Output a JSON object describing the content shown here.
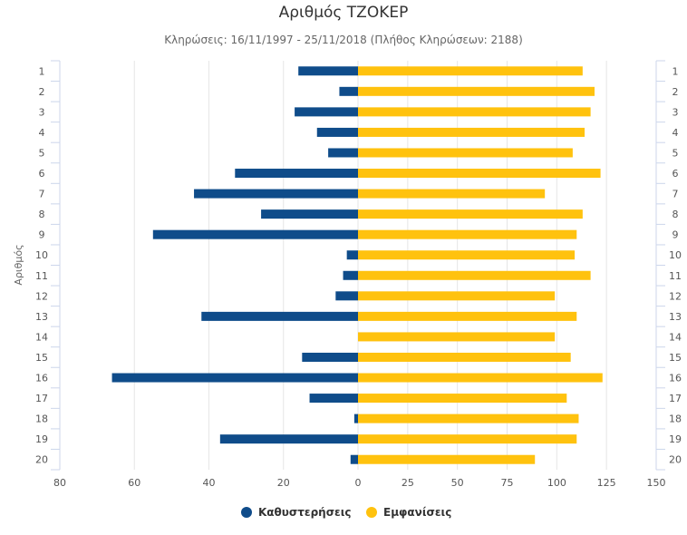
{
  "chart_data": {
    "type": "bar",
    "title": "Αριθμός ΤΖΟΚΕΡ",
    "subtitle": "Κληρώσεις: 16/11/1997 - 25/11/2018 (Πλήθος Κληρώσεων: 2188)",
    "ylabel": "Αριθμός",
    "categories": [
      "1",
      "2",
      "3",
      "4",
      "5",
      "6",
      "7",
      "8",
      "9",
      "10",
      "11",
      "12",
      "13",
      "14",
      "15",
      "16",
      "17",
      "18",
      "19",
      "20"
    ],
    "series": [
      {
        "name": "Καθυστερήσεις",
        "color": "#0f4c8a",
        "axis": "left",
        "values": [
          16,
          5,
          17,
          11,
          8,
          33,
          44,
          26,
          55,
          3,
          4,
          6,
          42,
          0,
          15,
          66,
          13,
          1,
          37,
          2
        ]
      },
      {
        "name": "Εμφανίσεις",
        "color": "#ffc20e",
        "axis": "right",
        "values": [
          113,
          119,
          117,
          114,
          108,
          122,
          94,
          113,
          110,
          109,
          117,
          99,
          110,
          99,
          107,
          123,
          105,
          111,
          110,
          89
        ]
      }
    ],
    "left_axis": {
      "min": 0,
      "max": 80,
      "ticks": [
        "80",
        "60",
        "40",
        "20",
        "0"
      ]
    },
    "right_axis": {
      "min": 0,
      "max": 150,
      "ticks": [
        "25",
        "50",
        "75",
        "100",
        "125",
        "150"
      ]
    },
    "legend_position": "bottom"
  }
}
